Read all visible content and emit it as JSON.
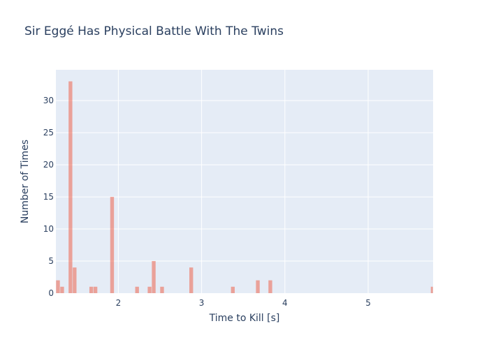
{
  "chart_data": {
    "type": "bar",
    "title": "Sir Eggé Has Physical Battle With The Twins",
    "xlabel": "Time to Kill [s]",
    "ylabel": "Number of Times",
    "xlim": [
      1.25,
      5.78
    ],
    "ylim": [
      0,
      34.8
    ],
    "bin_width": 0.05,
    "x_ticks": [
      2,
      3,
      4,
      5
    ],
    "y_ticks": [
      0,
      5,
      10,
      15,
      20,
      25,
      30
    ],
    "bins": [
      {
        "x": 1.275,
        "count": 2
      },
      {
        "x": 1.325,
        "count": 1
      },
      {
        "x": 1.425,
        "count": 33
      },
      {
        "x": 1.475,
        "count": 4
      },
      {
        "x": 1.675,
        "count": 1
      },
      {
        "x": 1.725,
        "count": 1
      },
      {
        "x": 1.925,
        "count": 15
      },
      {
        "x": 2.225,
        "count": 1
      },
      {
        "x": 2.375,
        "count": 1
      },
      {
        "x": 2.425,
        "count": 5
      },
      {
        "x": 2.525,
        "count": 1
      },
      {
        "x": 2.875,
        "count": 4
      },
      {
        "x": 3.375,
        "count": 1
      },
      {
        "x": 3.675,
        "count": 2
      },
      {
        "x": 3.825,
        "count": 2
      },
      {
        "x": 5.775,
        "count": 1
      }
    ],
    "grid": true,
    "colors": {
      "bar": "#EF553B",
      "plot_bg": "#E5ECF6",
      "grid": "#ffffff",
      "text": "#2a3f5f"
    }
  }
}
